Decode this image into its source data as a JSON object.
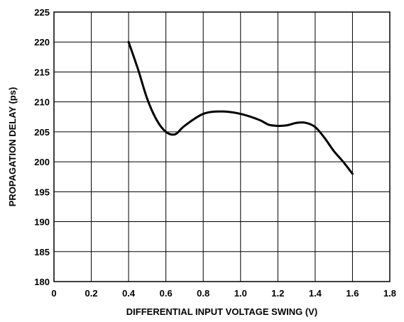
{
  "chart_data": {
    "type": "line",
    "xlabel": "DIFFERENTIAL INPUT VOLTAGE SWING (V)",
    "ylabel": "PROPAGATION DELAY (ps)",
    "xlim": [
      0,
      1.8
    ],
    "ylim": [
      180,
      225
    ],
    "x_ticks": [
      0,
      0.2,
      0.4,
      0.6,
      0.8,
      1.0,
      1.2,
      1.4,
      1.6,
      1.8
    ],
    "x_tick_labels": [
      "0",
      "0.2",
      "0.4",
      "0.6",
      "0.8",
      "1.0",
      "1.2",
      "1.4",
      "1.6",
      "1.8"
    ],
    "y_ticks": [
      180,
      185,
      190,
      195,
      200,
      205,
      210,
      215,
      220,
      225
    ],
    "y_tick_labels": [
      "180",
      "185",
      "190",
      "195",
      "200",
      "205",
      "210",
      "215",
      "220",
      "225"
    ],
    "grid": true,
    "series": [
      {
        "x": [
          0.4,
          0.45,
          0.5,
          0.55,
          0.6,
          0.65,
          0.7,
          0.8,
          0.9,
          1.0,
          1.1,
          1.15,
          1.2,
          1.25,
          1.3,
          1.35,
          1.4,
          1.45,
          1.5,
          1.55,
          1.6
        ],
        "y": [
          220,
          215.5,
          210.5,
          207,
          205,
          204.6,
          206,
          208,
          208.4,
          208,
          207,
          206.2,
          206,
          206.1,
          206.5,
          206.5,
          205.8,
          204,
          201.8,
          200,
          198
        ]
      }
    ]
  }
}
